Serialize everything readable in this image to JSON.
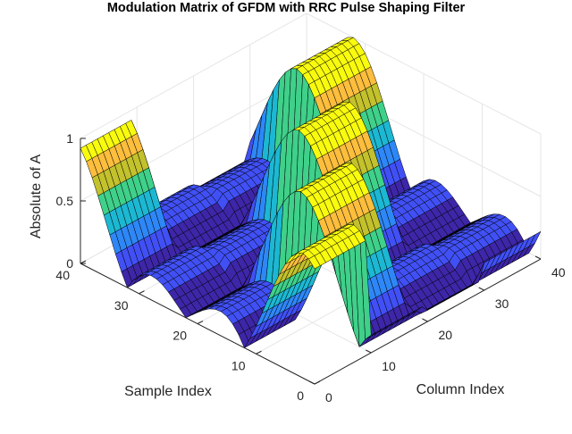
{
  "chart_data": {
    "type": "surface",
    "title": "Modulation Matrix of GFDM with RRC Pulse Shaping Filter",
    "xlabel": "Column Index",
    "ylabel": "Sample Index",
    "zlabel": "Absolute of A",
    "xlim": [
      0,
      40
    ],
    "ylim": [
      0,
      40
    ],
    "zlim": [
      0,
      1
    ],
    "xticks": [
      "0",
      "10",
      "20",
      "30",
      "40"
    ],
    "yticks": [
      "0",
      "10",
      "20",
      "30",
      "40"
    ],
    "zticks": [
      "0",
      "0.5",
      "1"
    ],
    "grid": true,
    "colormap": [
      "#3e26a8",
      "#4150f5",
      "#2e87f7",
      "#1cb8d3",
      "#3fd08a",
      "#c3c12c",
      "#fdbe3d",
      "#f9fb0e"
    ],
    "edge_color": "#000000",
    "grid_size": [
      40,
      40
    ],
    "subsymbols": 4,
    "subcarriers": 10
  }
}
